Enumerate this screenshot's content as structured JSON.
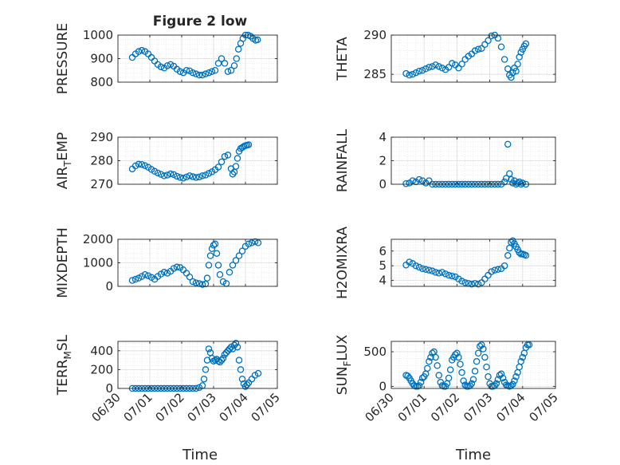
{
  "figure": {
    "title": "Figure 2 low",
    "x_tick_labels": [
      "06/30",
      "07/01",
      "07/02",
      "07/03",
      "07/04",
      "07/05"
    ],
    "x_label": "Time",
    "marker_color": "#0072BD",
    "axes_color": "#262626",
    "grid_color": "#dcdcdc"
  },
  "chart_data": [
    {
      "type": "scatter",
      "title": "Figure 2 low",
      "ylabel": "PRESSURE",
      "xlim": [
        0,
        5
      ],
      "ylim": [
        800,
        1000
      ],
      "yticks": [
        800,
        900,
        1000
      ],
      "x_tick_labels_shown": false,
      "grid": true,
      "x": [
        0.45,
        0.55,
        0.65,
        0.75,
        0.85,
        0.95,
        1.05,
        1.15,
        1.25,
        1.35,
        1.45,
        1.55,
        1.65,
        1.75,
        1.85,
        1.95,
        2.05,
        2.15,
        2.25,
        2.35,
        2.45,
        2.55,
        2.65,
        2.75,
        2.85,
        2.95,
        3.05,
        3.15,
        3.25,
        3.35,
        3.45,
        3.55,
        3.65,
        3.72,
        3.78,
        3.85,
        3.92,
        4.0,
        4.08,
        4.16,
        4.24,
        4.32,
        4.38
      ],
      "y": [
        905,
        920,
        930,
        935,
        930,
        920,
        905,
        890,
        875,
        865,
        860,
        870,
        875,
        868,
        855,
        845,
        840,
        850,
        848,
        840,
        835,
        830,
        830,
        835,
        840,
        845,
        850,
        880,
        900,
        880,
        845,
        850,
        870,
        900,
        940,
        965,
        985,
        1000,
        1000,
        995,
        985,
        978,
        980
      ]
    },
    {
      "type": "scatter",
      "title": "",
      "ylabel": "THETA",
      "xlim": [
        0,
        5
      ],
      "ylim": [
        284,
        290
      ],
      "yticks": [
        285,
        290
      ],
      "x_tick_labels_shown": false,
      "grid": true,
      "x": [
        0.45,
        0.55,
        0.65,
        0.75,
        0.85,
        0.95,
        1.05,
        1.15,
        1.25,
        1.35,
        1.45,
        1.55,
        1.65,
        1.75,
        1.85,
        1.95,
        2.05,
        2.15,
        2.25,
        2.35,
        2.45,
        2.55,
        2.65,
        2.75,
        2.85,
        2.95,
        3.05,
        3.15,
        3.25,
        3.35,
        3.45,
        3.55,
        3.6,
        3.65,
        3.7,
        3.75,
        3.8,
        3.85,
        3.9,
        3.95,
        4.0,
        4.05,
        4.1
      ],
      "y": [
        285.1,
        284.9,
        285.0,
        285.2,
        285.4,
        285.5,
        285.7,
        285.9,
        286.0,
        286.2,
        286.0,
        285.8,
        285.6,
        285.9,
        286.4,
        286.2,
        285.8,
        286.3,
        286.9,
        287.3,
        287.6,
        288.0,
        288.2,
        288.3,
        288.8,
        289.3,
        289.9,
        290.0,
        289.6,
        288.5,
        286.9,
        285.7,
        284.9,
        284.6,
        285.2,
        285.8,
        285.4,
        286.3,
        287.2,
        287.8,
        288.2,
        288.6,
        288.9
      ]
    },
    {
      "type": "scatter",
      "title": "",
      "ylabel": "AIR_TEMP",
      "xlim": [
        0,
        5
      ],
      "ylim": [
        270,
        290
      ],
      "yticks": [
        270,
        280,
        290
      ],
      "x_tick_labels_shown": false,
      "grid": true,
      "x": [
        0.45,
        0.55,
        0.65,
        0.75,
        0.85,
        0.95,
        1.05,
        1.15,
        1.25,
        1.35,
        1.45,
        1.55,
        1.65,
        1.75,
        1.85,
        1.95,
        2.05,
        2.15,
        2.25,
        2.35,
        2.45,
        2.55,
        2.65,
        2.75,
        2.85,
        2.95,
        3.05,
        3.15,
        3.25,
        3.35,
        3.45,
        3.55,
        3.6,
        3.65,
        3.7,
        3.75,
        3.8,
        3.85,
        3.9,
        3.95,
        4.0,
        4.05,
        4.1
      ],
      "y": [
        276.5,
        277.8,
        278.5,
        278.4,
        277.9,
        277.2,
        276.3,
        275.5,
        274.8,
        274.2,
        273.6,
        273.9,
        274.4,
        274.1,
        273.4,
        272.9,
        272.6,
        273.1,
        273.6,
        273.2,
        272.9,
        273.1,
        273.6,
        273.9,
        274.6,
        275.3,
        276.2,
        277.3,
        279.5,
        281.8,
        282.4,
        276.6,
        274.3,
        275.2,
        277.6,
        281.0,
        284.0,
        285.2,
        285.6,
        286.1,
        286.4,
        286.6,
        286.8
      ]
    },
    {
      "type": "scatter",
      "title": "",
      "ylabel": "RAINFALL",
      "xlim": [
        0,
        5
      ],
      "ylim": [
        0,
        4
      ],
      "yticks": [
        0,
        2,
        4
      ],
      "x_tick_labels_shown": false,
      "grid": true,
      "x": [
        0.45,
        0.55,
        0.65,
        0.75,
        0.85,
        0.95,
        1.05,
        1.15,
        1.25,
        1.35,
        1.45,
        1.55,
        1.65,
        1.75,
        1.85,
        1.95,
        2.05,
        2.15,
        2.25,
        2.35,
        2.45,
        2.55,
        2.65,
        2.75,
        2.85,
        2.95,
        3.05,
        3.15,
        3.25,
        3.35,
        3.45,
        3.5,
        3.55,
        3.6,
        3.65,
        3.7,
        3.75,
        3.8,
        3.85,
        3.9,
        3.95,
        4.0,
        4.1
      ],
      "y": [
        0.05,
        0.1,
        0.3,
        0.2,
        0.4,
        0.3,
        0.1,
        0.3,
        0.0,
        0.0,
        0.0,
        0.0,
        0.0,
        0.0,
        0.0,
        0.0,
        0.0,
        0.0,
        0.0,
        0.0,
        0.0,
        0.0,
        0.0,
        0.0,
        0.0,
        0.0,
        0.0,
        0.0,
        0.0,
        0.0,
        0.2,
        0.5,
        3.4,
        0.9,
        0.4,
        0.1,
        0.3,
        0.0,
        0.1,
        0.2,
        0.0,
        0.1,
        0.0
      ]
    },
    {
      "type": "scatter",
      "title": "",
      "ylabel": "MIXDEPTH",
      "xlim": [
        0,
        5
      ],
      "ylim": [
        0,
        2000
      ],
      "yticks": [
        0,
        1000,
        2000
      ],
      "x_tick_labels_shown": false,
      "grid": true,
      "x": [
        0.45,
        0.55,
        0.65,
        0.75,
        0.85,
        0.95,
        1.05,
        1.15,
        1.25,
        1.35,
        1.45,
        1.55,
        1.65,
        1.75,
        1.85,
        1.95,
        2.05,
        2.15,
        2.25,
        2.35,
        2.45,
        2.55,
        2.65,
        2.75,
        2.8,
        2.85,
        2.9,
        2.95,
        3.0,
        3.05,
        3.1,
        3.15,
        3.2,
        3.3,
        3.4,
        3.5,
        3.6,
        3.7,
        3.8,
        3.9,
        4.0,
        4.1,
        4.2,
        4.3,
        4.4
      ],
      "y": [
        250,
        300,
        350,
        420,
        500,
        450,
        380,
        300,
        420,
        520,
        600,
        560,
        640,
        760,
        820,
        800,
        700,
        560,
        400,
        200,
        150,
        120,
        80,
        100,
        350,
        900,
        1300,
        1600,
        1750,
        1800,
        1400,
        900,
        500,
        200,
        120,
        600,
        900,
        1100,
        1300,
        1500,
        1700,
        1800,
        1850,
        1900,
        1850
      ]
    },
    {
      "type": "scatter",
      "title": "",
      "ylabel": "H2OMIXRA",
      "xlim": [
        0,
        5
      ],
      "ylim": [
        3.6,
        6.8
      ],
      "yticks": [
        4,
        5,
        6
      ],
      "x_tick_labels_shown": false,
      "grid": true,
      "x": [
        0.45,
        0.55,
        0.65,
        0.75,
        0.85,
        0.95,
        1.05,
        1.15,
        1.25,
        1.35,
        1.45,
        1.55,
        1.65,
        1.75,
        1.85,
        1.95,
        2.05,
        2.15,
        2.25,
        2.35,
        2.45,
        2.55,
        2.65,
        2.75,
        2.85,
        2.95,
        3.05,
        3.15,
        3.25,
        3.35,
        3.45,
        3.55,
        3.6,
        3.65,
        3.7,
        3.75,
        3.8,
        3.85,
        3.9,
        3.95,
        4.0,
        4.05,
        4.1
      ],
      "y": [
        5.05,
        5.25,
        5.15,
        5.0,
        4.9,
        4.8,
        4.75,
        4.7,
        4.65,
        4.55,
        4.5,
        4.55,
        4.45,
        4.35,
        4.3,
        4.25,
        4.1,
        3.95,
        3.85,
        3.8,
        3.75,
        3.8,
        3.75,
        3.85,
        4.1,
        4.35,
        4.6,
        4.7,
        4.75,
        4.8,
        5.0,
        5.7,
        6.2,
        6.6,
        6.7,
        6.5,
        6.3,
        6.1,
        5.9,
        5.8,
        5.8,
        5.75,
        5.7
      ]
    },
    {
      "type": "scatter",
      "title": "",
      "ylabel": "TERR_MSL",
      "xlim": [
        0,
        5
      ],
      "ylim": [
        0,
        500
      ],
      "yticks": [
        0,
        200,
        400
      ],
      "x_tick_labels_shown": true,
      "grid": true,
      "x": [
        0.45,
        0.55,
        0.65,
        0.75,
        0.85,
        0.95,
        1.05,
        1.15,
        1.25,
        1.35,
        1.45,
        1.55,
        1.65,
        1.75,
        1.85,
        1.95,
        2.05,
        2.15,
        2.25,
        2.35,
        2.45,
        2.55,
        2.65,
        2.7,
        2.75,
        2.8,
        2.85,
        2.9,
        2.95,
        3.0,
        3.05,
        3.1,
        3.15,
        3.2,
        3.25,
        3.3,
        3.35,
        3.4,
        3.45,
        3.5,
        3.55,
        3.6,
        3.65,
        3.7,
        3.75,
        3.8,
        3.85,
        3.9,
        3.95,
        4.0,
        4.05,
        4.1,
        4.2,
        4.3,
        4.4
      ],
      "y": [
        0,
        0,
        0,
        0,
        0,
        0,
        0,
        0,
        0,
        0,
        0,
        0,
        0,
        0,
        0,
        0,
        0,
        0,
        0,
        0,
        0,
        10,
        30,
        100,
        200,
        300,
        420,
        380,
        320,
        290,
        300,
        310,
        290,
        280,
        300,
        320,
        360,
        380,
        400,
        420,
        440,
        420,
        460,
        480,
        440,
        300,
        200,
        100,
        50,
        20,
        40,
        60,
        100,
        140,
        160
      ]
    },
    {
      "type": "scatter",
      "title": "",
      "ylabel": "SUN_FLUX",
      "xlim": [
        0,
        5
      ],
      "ylim": [
        -30,
        650
      ],
      "yticks": [
        0,
        500
      ],
      "x_tick_labels_shown": true,
      "grid": true,
      "x": [
        0.45,
        0.5,
        0.55,
        0.6,
        0.65,
        0.7,
        0.75,
        0.8,
        0.85,
        0.9,
        0.95,
        1.0,
        1.05,
        1.1,
        1.15,
        1.2,
        1.25,
        1.3,
        1.35,
        1.4,
        1.45,
        1.5,
        1.55,
        1.6,
        1.65,
        1.7,
        1.75,
        1.8,
        1.85,
        1.9,
        1.95,
        2.0,
        2.05,
        2.1,
        2.15,
        2.2,
        2.25,
        2.3,
        2.35,
        2.4,
        2.45,
        2.5,
        2.55,
        2.6,
        2.65,
        2.7,
        2.75,
        2.8,
        2.85,
        2.9,
        2.95,
        3.0,
        3.05,
        3.1,
        3.15,
        3.2,
        3.25,
        3.3,
        3.35,
        3.4,
        3.45,
        3.5,
        3.55,
        3.6,
        3.65,
        3.7,
        3.75,
        3.8,
        3.85,
        3.9,
        3.95,
        4.0,
        4.05,
        4.1,
        4.15,
        4.2
      ],
      "y": [
        160,
        150,
        120,
        80,
        40,
        10,
        0,
        0,
        10,
        60,
        120,
        140,
        180,
        260,
        360,
        420,
        480,
        500,
        420,
        300,
        160,
        60,
        10,
        0,
        0,
        40,
        120,
        240,
        380,
        420,
        460,
        480,
        420,
        320,
        200,
        80,
        20,
        0,
        0,
        10,
        40,
        100,
        220,
        360,
        480,
        580,
        600,
        540,
        420,
        280,
        140,
        40,
        0,
        0,
        10,
        40,
        100,
        160,
        180,
        120,
        60,
        20,
        10,
        0,
        10,
        30,
        80,
        140,
        200,
        280,
        360,
        420,
        480,
        560,
        600,
        600
      ]
    }
  ]
}
